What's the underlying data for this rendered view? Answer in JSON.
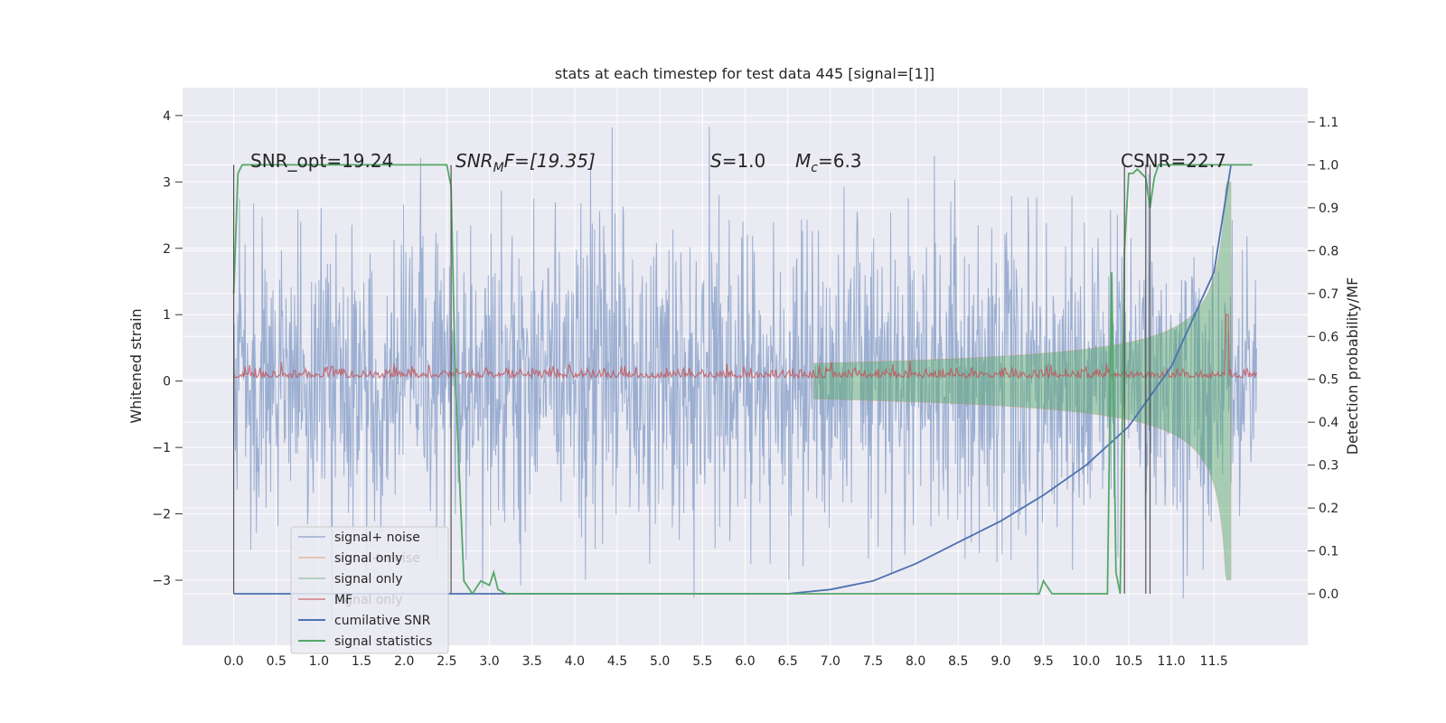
{
  "chart_data": {
    "type": "line",
    "title": "stats at each timestep for test data 445 [signal=[1]]",
    "ylabel": "Whitened strain",
    "y2label": "Detection probability/MF",
    "xlim": [
      -0.6,
      12.6
    ],
    "ylim": [
      -3.98,
      4.42
    ],
    "y2lim": [
      -0.12,
      1.18
    ],
    "xticks": [
      "0.0",
      "0.5",
      "1.0",
      "1.5",
      "2.0",
      "2.5",
      "3.0",
      "3.5",
      "4.0",
      "4.5",
      "5.0",
      "5.5",
      "6.0",
      "6.5",
      "7.0",
      "7.5",
      "8.0",
      "8.5",
      "9.0",
      "9.5",
      "10.0",
      "10.5",
      "11.0",
      "11.5"
    ],
    "yticks": [
      "4",
      "3",
      "2",
      "1",
      "0",
      "−1",
      "−2",
      "−3"
    ],
    "y2ticks": [
      "1.1",
      "1.0",
      "0.9",
      "0.8",
      "0.7",
      "0.6",
      "0.5",
      "0.4",
      "0.3",
      "0.2",
      "0.1",
      "0.0"
    ],
    "grid": true,
    "legend_position": "lower-left",
    "annotations": {
      "snr_opt": "SNR_opt=19.24",
      "snr_mf_pre": "SNR",
      "snr_mf_sub": "M",
      "snr_mf_post": "F=[19.35]",
      "s_pre": "S",
      "s_post": "=1.0",
      "mc_pre": "M",
      "mc_sub": "c",
      "mc_post": "=6.3",
      "csnr": "CSNR=22.7"
    },
    "legend": [
      {
        "label": "signal+ noise",
        "color": "#4c72b0",
        "alpha": 0.5
      },
      {
        "label": "signal only",
        "color": "#dd8452",
        "alpha": 0.5
      },
      {
        "label": "signal only",
        "color": "#55a868",
        "alpha": 0.5
      },
      {
        "label": "MF",
        "color": "#c44e52",
        "alpha": 0.7
      },
      {
        "label": "cumilative SNR",
        "color": "#4c72b0",
        "alpha": 1.0
      },
      {
        "label": "signal statistics",
        "color": "#55a868",
        "alpha": 1.0
      }
    ],
    "hidden_legend_text": [
      "signal+ noise",
      "signal only"
    ],
    "series": [
      {
        "name": "signal+ noise",
        "axis": "left",
        "x_range": [
          0.0,
          12.0
        ],
        "min_approx": -3.6,
        "max_approx": 4.1,
        "envelope_std": 1.0
      },
      {
        "name": "signal only",
        "axis": "left",
        "chirp_start": 6.8,
        "chirp_end": 11.7,
        "end_amplitude": 3.0
      },
      {
        "name": "MF",
        "axis": "left",
        "baseline_amplitude": 0.12,
        "peak": {
          "x": 11.65,
          "y": 1.0
        }
      },
      {
        "name": "cumilative SNR",
        "axis": "right",
        "x": [
          0.0,
          6.5,
          7.0,
          7.5,
          8.0,
          8.5,
          9.0,
          9.5,
          10.0,
          10.5,
          11.0,
          11.5,
          11.7
        ],
        "y": [
          0.0,
          0.0,
          0.01,
          0.03,
          0.07,
          0.12,
          0.17,
          0.23,
          0.3,
          0.39,
          0.53,
          0.75,
          1.0
        ]
      },
      {
        "name": "signal statistics",
        "axis": "right",
        "x": [
          0.0,
          0.05,
          0.1,
          2.5,
          2.55,
          2.6,
          2.7,
          2.8,
          2.9,
          3.0,
          3.05,
          3.1,
          3.2,
          9.45,
          9.5,
          9.6,
          10.25,
          10.3,
          10.35,
          10.4,
          10.45,
          10.5,
          10.55,
          10.6,
          10.7,
          10.75,
          10.8,
          10.85,
          11.95
        ],
        "y": [
          0.7,
          0.98,
          1.0,
          1.0,
          0.95,
          0.5,
          0.03,
          0.0,
          0.03,
          0.02,
          0.05,
          0.01,
          0.0,
          0.0,
          0.03,
          0.0,
          0.0,
          0.75,
          0.05,
          0.0,
          0.8,
          0.98,
          0.98,
          0.99,
          0.97,
          0.9,
          0.97,
          1.0,
          1.0
        ]
      }
    ]
  }
}
